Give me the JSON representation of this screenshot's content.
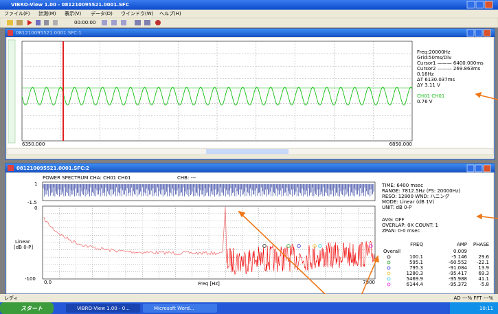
{
  "app": {
    "title": "VIBRO-View 1.00 - 081210095521.0001.SFC",
    "menu": [
      "ファイル(F)",
      "計測(M)",
      "表示(V)",
      "データ(D)",
      "ウインドウ(W)",
      "ヘルプ(H)"
    ],
    "toolbar_time": "00:00:00"
  },
  "window1": {
    "title": "081210095521.0001.SFC:1",
    "x_start": "6350.000",
    "x_end": "6850.000",
    "info": [
      "Freq:20000Hz",
      "Grid:50ms/Div",
      "Cursor1 ——— 6400.000ms",
      "Cursor2 ——— 269.863ms",
      "0.16Hz",
      "ΔT 6130.037ms",
      "ΔY    3.11 V",
      "CH01 CH01",
      "0.76 V"
    ]
  },
  "window2": {
    "title": "081210095521.0001.SFC:2",
    "header": "POWER SPECTRUM  CHA: CH01 CH01",
    "chb": "CHB: ---",
    "strip_top": "1",
    "strip_bottom": "-1.5",
    "y_top": "0",
    "y_label": [
      "Linear",
      "[dB 0-P]"
    ],
    "y_bottom": "-100",
    "x_start": "0.0",
    "x_label": "Freq [Hz]",
    "x_end": "7800",
    "info": [
      "TIME: 6400 msec",
      "RANGE: 7812.5Hz (FS: 20000Hz)",
      "RESO: 12800  WND: ハニング",
      "MODE: Linear (dB 1V)",
      "UNIT: dB 0-P",
      "AVG: OFF",
      "OVERLAP: 0X  COUNT: 1",
      "ZPAN: 0-0 msec"
    ],
    "table": {
      "headers": [
        "FREQ",
        "AMP",
        "PHASE"
      ],
      "overall": [
        "Overall",
        "0.009"
      ],
      "rows": [
        [
          "100.1",
          "-5.146",
          "29.6"
        ],
        [
          "595.1",
          "-60.552",
          "-22.1"
        ],
        [
          "795.3",
          "-91.084",
          "13.9"
        ],
        [
          "1280.3",
          "-95.417",
          "69.3"
        ],
        [
          "5469.9",
          "-95.988",
          "41.1"
        ],
        [
          "6144.4",
          "-95.372",
          "-5.8"
        ]
      ]
    }
  },
  "status": {
    "left": "レディ",
    "right": "AD ---%  FFT ---%"
  },
  "taskbar": {
    "start": "スタート",
    "tasks": [
      "VIBRO-View 1.00 - 0...",
      "Microsoft Word..."
    ],
    "clock": "10:11"
  }
}
